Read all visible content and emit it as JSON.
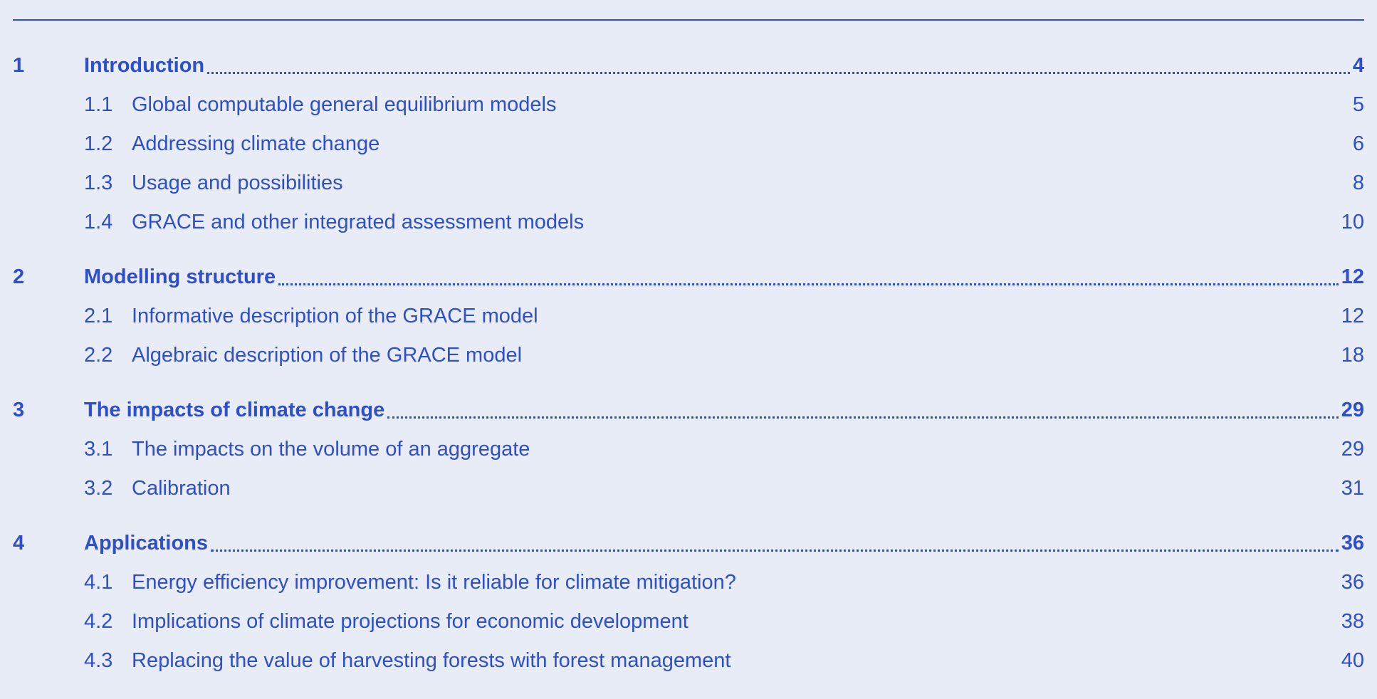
{
  "toc": [
    {
      "number": "1",
      "title": "Introduction",
      "page": "4",
      "sections": [
        {
          "number": "1.1",
          "title": "Global computable general equilibrium models",
          "page": "5"
        },
        {
          "number": "1.2",
          "title": "Addressing climate change",
          "page": "6"
        },
        {
          "number": "1.3",
          "title": "Usage and possibilities",
          "page": "8"
        },
        {
          "number": "1.4",
          "title": "GRACE and other integrated assessment models",
          "page": "10"
        }
      ]
    },
    {
      "number": "2",
      "title": "Modelling structure",
      "page": "12",
      "sections": [
        {
          "number": "2.1",
          "title": "Informative description of the GRACE model",
          "page": "12"
        },
        {
          "number": "2.2",
          "title": "Algebraic description of the GRACE model",
          "page": "18"
        }
      ]
    },
    {
      "number": "3",
      "title": "The impacts of climate change",
      "page": "29",
      "sections": [
        {
          "number": "3.1",
          "title": "The impacts on the volume of an aggregate",
          "page": "29"
        },
        {
          "number": "3.2",
          "title": "Calibration",
          "page": "31"
        }
      ]
    },
    {
      "number": "4",
      "title": "Applications",
      "page": "36",
      "sections": [
        {
          "number": "4.1",
          "title": "Energy efficiency improvement: Is it reliable for climate mitigation?",
          "page": "36"
        },
        {
          "number": "4.2",
          "title": "Implications of climate projections for economic development",
          "page": "38"
        },
        {
          "number": "4.3",
          "title": "Replacing the value of harvesting forests with forest management",
          "page": "40"
        }
      ]
    }
  ]
}
